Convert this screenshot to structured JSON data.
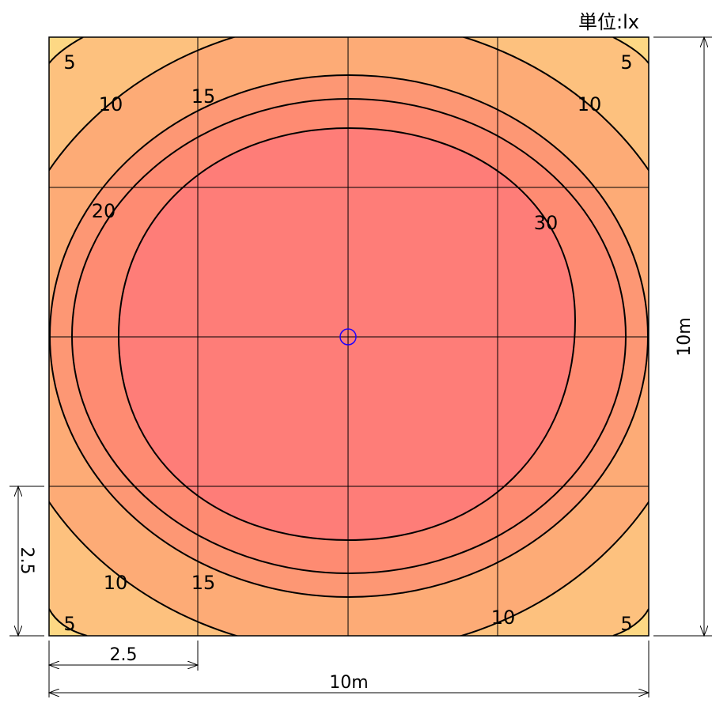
{
  "unit_label": "単位:lx",
  "colors": {
    "zone_lt5": "#fdd884",
    "zone_5_10": "#fdc17e",
    "zone_10_15": "#fdab76",
    "zone_15_20": "#fd9774",
    "zone_20_30": "#fe8b72",
    "zone_gt30": "#fe7d78",
    "grid": "#000000",
    "contour": "#000000",
    "luminaire": "#1f00ff"
  },
  "contour_labels": {
    "tl_5": "5",
    "tr_5": "5",
    "bl_5": "5",
    "br_5": "5",
    "tl_10": "10",
    "tr_10": "10",
    "bl_10": "10",
    "br_10": "10",
    "t_15": "15",
    "b_15": "15",
    "l_20": "20",
    "r_30": "30"
  },
  "dimensions": {
    "width_total": "10m",
    "height_total": "10m",
    "grid_x_step": "2.5",
    "grid_y_step": "2.5"
  },
  "luminaire": {
    "icon": "circle-marker-icon"
  }
}
